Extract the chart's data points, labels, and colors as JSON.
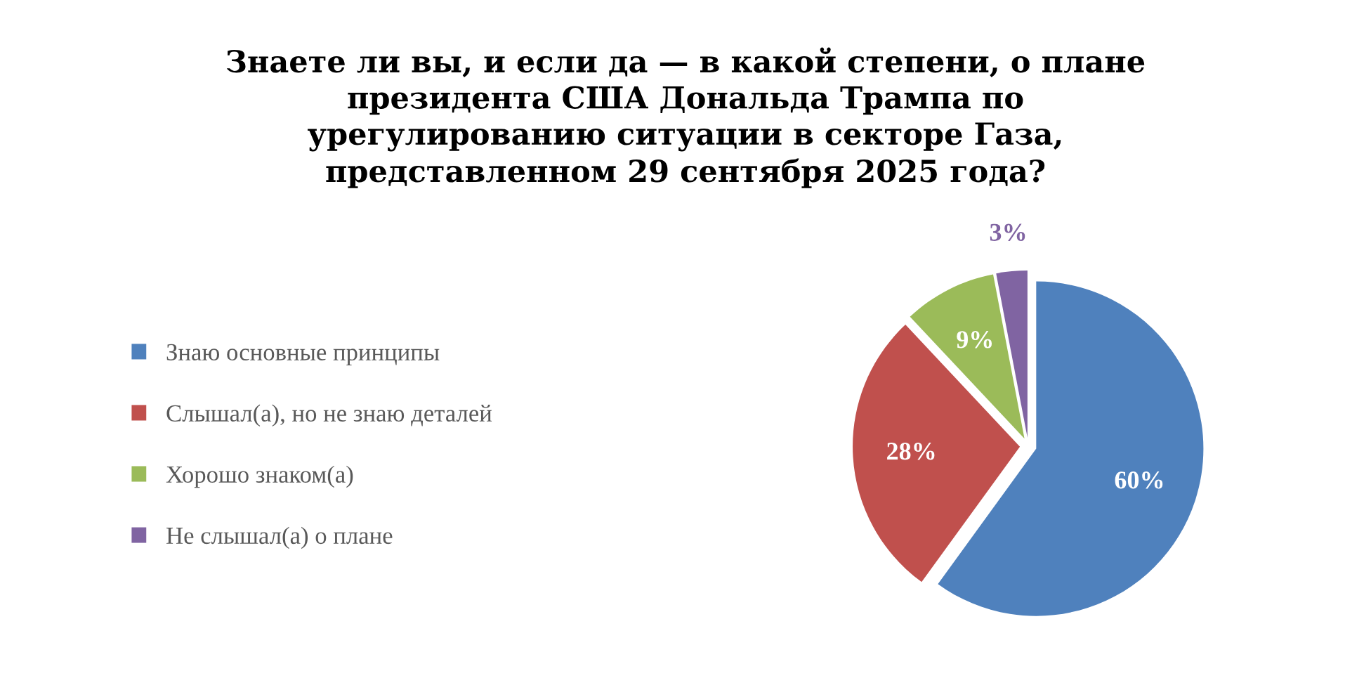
{
  "chart_data": {
    "type": "pie",
    "title": "Знаете ли вы, и если да — в какой степени, о плане\nпрезидента США Дональда Трампа по\nурегулированию ситуации в секторе Газа,\nпредставленном 29 сентября 2025 года?",
    "categories": [
      "Знаю основные принципы",
      "Слышал(а), но не знаю деталей",
      "Хорошо знаком(а)",
      "Не слышал(а) о плане"
    ],
    "values": [
      60,
      28,
      9,
      3
    ],
    "colors": [
      "#4f81bd",
      "#c0504d",
      "#9bbb59",
      "#8064a2"
    ],
    "value_labels": [
      "60%",
      "28%",
      "9%",
      "3%"
    ],
    "legend": "left"
  }
}
